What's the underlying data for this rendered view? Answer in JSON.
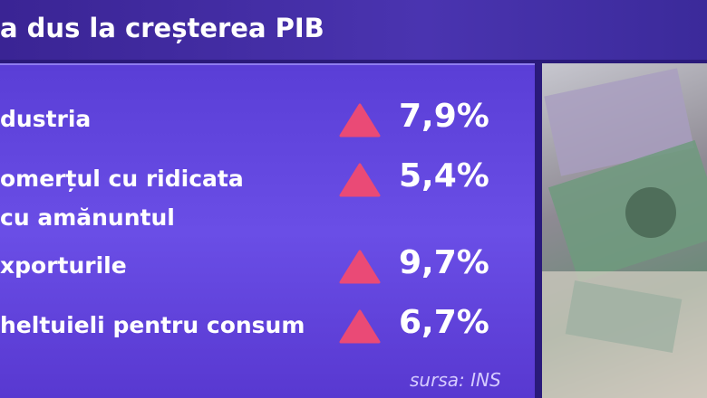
{
  "header": {
    "title": "a dus la creșterea PIB"
  },
  "rows": [
    {
      "label": [
        "dustria"
      ],
      "value": "7,9%"
    },
    {
      "label": [
        "omerțul cu ridicata",
        "cu amănuntul"
      ],
      "value": "5,4%"
    },
    {
      "label": [
        "xporturile"
      ],
      "value": "9,7%"
    },
    {
      "label": [
        "heltuieli pentru consum"
      ],
      "value": "6,7%"
    }
  ],
  "source": "sursa: INS"
}
